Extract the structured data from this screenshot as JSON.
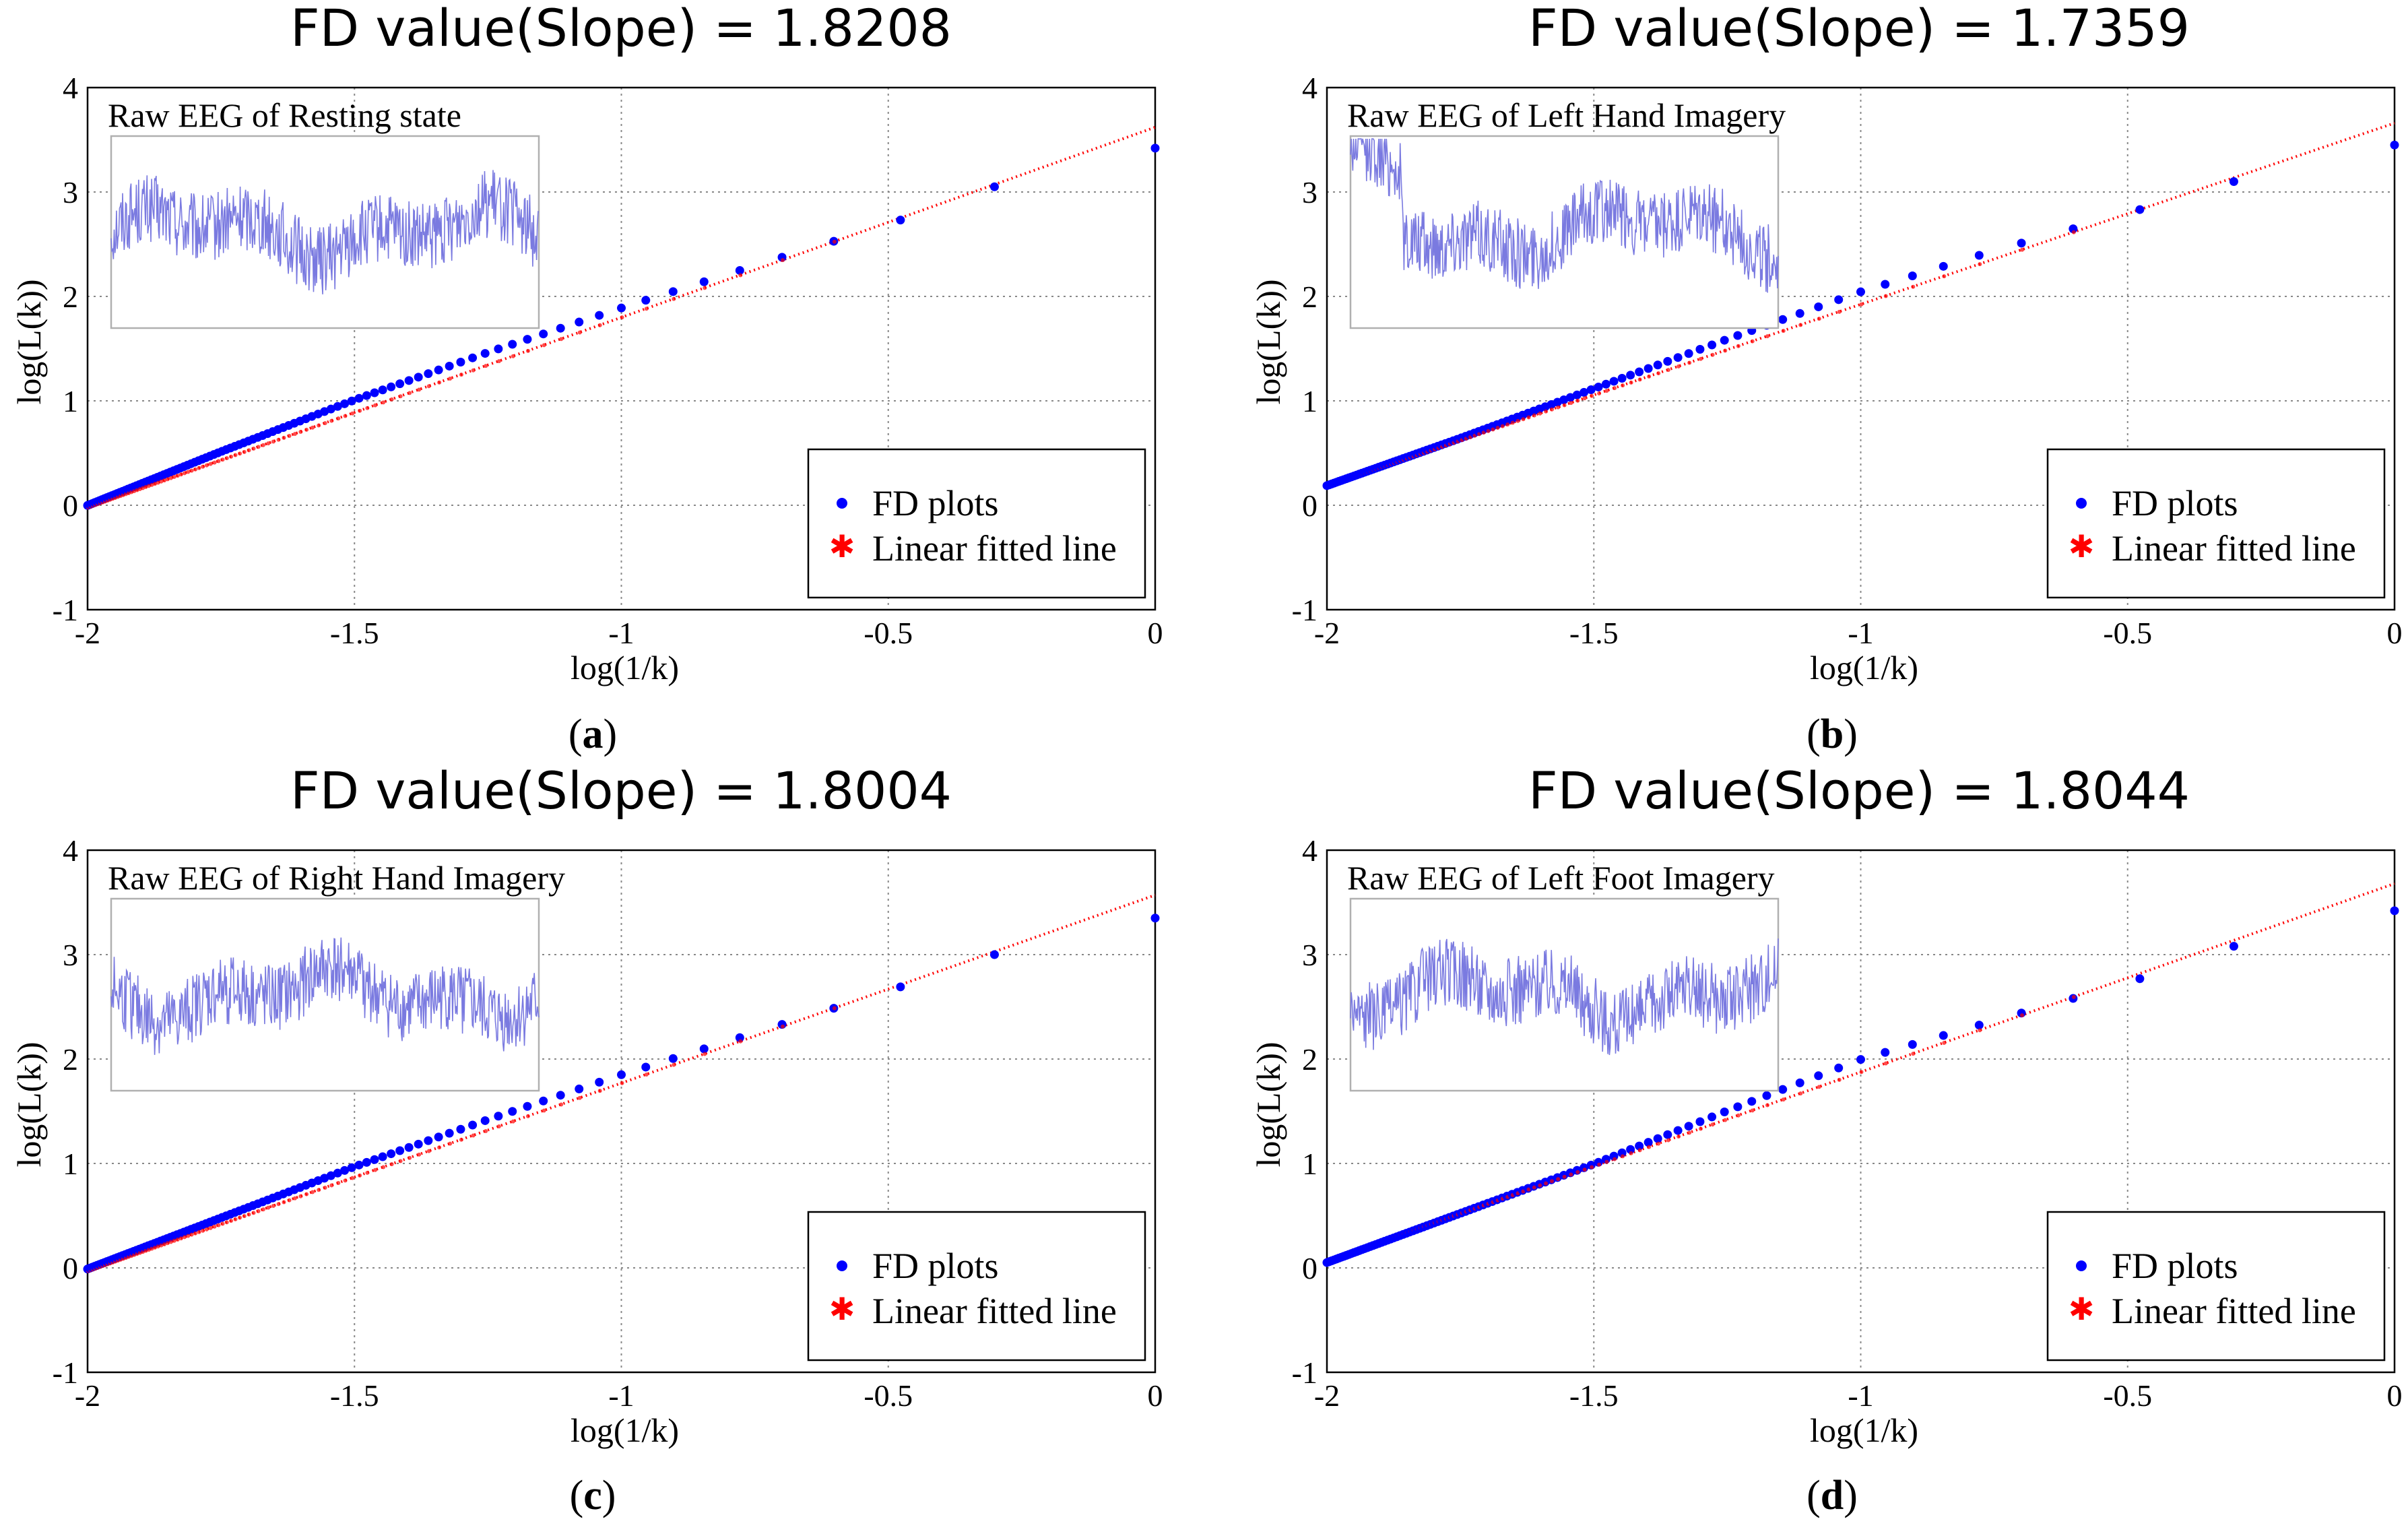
{
  "chart_data": [
    {
      "type": "scatter",
      "title": "FD value(Slope) = 1.8208",
      "panel_label": "a",
      "xlabel": "log(1/k)",
      "ylabel": "log(L(k))",
      "xlim": [
        -2,
        0
      ],
      "ylim": [
        -1,
        4
      ],
      "xticks": [
        -2,
        -1.5,
        -1,
        -0.5,
        0
      ],
      "yticks": [
        -1,
        0,
        1,
        2,
        3,
        4
      ],
      "grid": true,
      "inset_title": "Raw EEG of Resting state",
      "legend": {
        "position": "bottom-right",
        "entries": [
          "FD plots",
          "Linear fitted line"
        ]
      },
      "series": [
        {
          "name": "FD plots",
          "color": "#0000ff",
          "kmax": 100,
          "last_points": [
            [
              -0.301,
              3.05
            ],
            [
              0.0,
              3.42
            ]
          ]
        },
        {
          "name": "Linear fitted line",
          "color": "#ff0000",
          "slope": 1.8208,
          "intercept": 3.62
        }
      ],
      "dev": [
        0.02,
        0.08,
        0.12,
        0.12,
        0.09,
        0.04,
        -0.02
      ]
    },
    {
      "type": "scatter",
      "title": "FD value(Slope) = 1.7359",
      "panel_label": "b",
      "xlabel": "log(1/k)",
      "ylabel": "log(L(k))",
      "xlim": [
        -2,
        0
      ],
      "ylim": [
        -1,
        4
      ],
      "xticks": [
        -2,
        -1.5,
        -1,
        -0.5,
        0
      ],
      "yticks": [
        -1,
        0,
        1,
        2,
        3,
        4
      ],
      "grid": true,
      "inset_title": "Raw EEG of Left Hand Imagery",
      "legend": {
        "position": "bottom-right",
        "entries": [
          "FD plots",
          "Linear fitted line"
        ]
      },
      "series": [
        {
          "name": "FD plots",
          "color": "#0000ff",
          "kmax": 100,
          "last_points": [
            [
              -0.301,
              3.1
            ],
            [
              0.0,
              3.45
            ]
          ]
        },
        {
          "name": "Linear fitted line",
          "color": "#ff0000",
          "slope": 1.7359,
          "intercept": 3.66
        }
      ],
      "dev": [
        0.0,
        0.02,
        0.06,
        0.1,
        0.12,
        0.08,
        0.0
      ]
    },
    {
      "type": "scatter",
      "title": "FD value(Slope) = 1.8004",
      "panel_label": "c",
      "xlabel": "log(1/k)",
      "ylabel": "log(L(k))",
      "xlim": [
        -2,
        0
      ],
      "ylim": [
        -1,
        4
      ],
      "xticks": [
        -2,
        -1.5,
        -1,
        -0.5,
        0
      ],
      "yticks": [
        -1,
        0,
        1,
        2,
        3,
        4
      ],
      "grid": true,
      "inset_title": "Raw EEG of Right Hand Imagery",
      "legend": {
        "position": "bottom-right",
        "entries": [
          "FD plots",
          "Linear fitted line"
        ]
      },
      "series": [
        {
          "name": "FD plots",
          "color": "#0000ff",
          "kmax": 100,
          "last_points": [
            [
              -0.301,
              3.0
            ],
            [
              0.0,
              3.35
            ]
          ]
        },
        {
          "name": "Linear fitted line",
          "color": "#ff0000",
          "slope": 1.8004,
          "intercept": 3.57
        }
      ],
      "dev": [
        0.02,
        0.06,
        0.1,
        0.1,
        0.08,
        0.03,
        -0.02
      ]
    },
    {
      "type": "scatter",
      "title": "FD value(Slope) = 1.8044",
      "panel_label": "d",
      "xlabel": "log(1/k)",
      "ylabel": "log(L(k))",
      "xlim": [
        -2,
        0
      ],
      "ylim": [
        -1,
        4
      ],
      "xticks": [
        -2,
        -1.5,
        -1,
        -0.5,
        0
      ],
      "yticks": [
        -1,
        0,
        1,
        2,
        3,
        4
      ],
      "grid": true,
      "inset_title": "Raw EEG of Left Foot Imagery",
      "legend": {
        "position": "bottom-right",
        "entries": [
          "FD plots",
          "Linear fitted line"
        ]
      },
      "series": [
        {
          "name": "FD plots",
          "color": "#0000ff",
          "kmax": 100,
          "last_points": [
            [
              -0.301,
              3.08
            ],
            [
              0.0,
              3.42
            ]
          ]
        },
        {
          "name": "Linear fitted line",
          "color": "#ff0000",
          "slope": 1.8044,
          "intercept": 3.68
        }
      ],
      "dev": [
        -0.02,
        0.0,
        0.02,
        0.08,
        0.12,
        0.04,
        -0.05
      ]
    }
  ],
  "colors": {
    "points": "#0000ff",
    "fit": "#ff0000",
    "grid": "#888888",
    "eeg": "#7a7ae0",
    "inset_border": "#b0b0b0"
  }
}
